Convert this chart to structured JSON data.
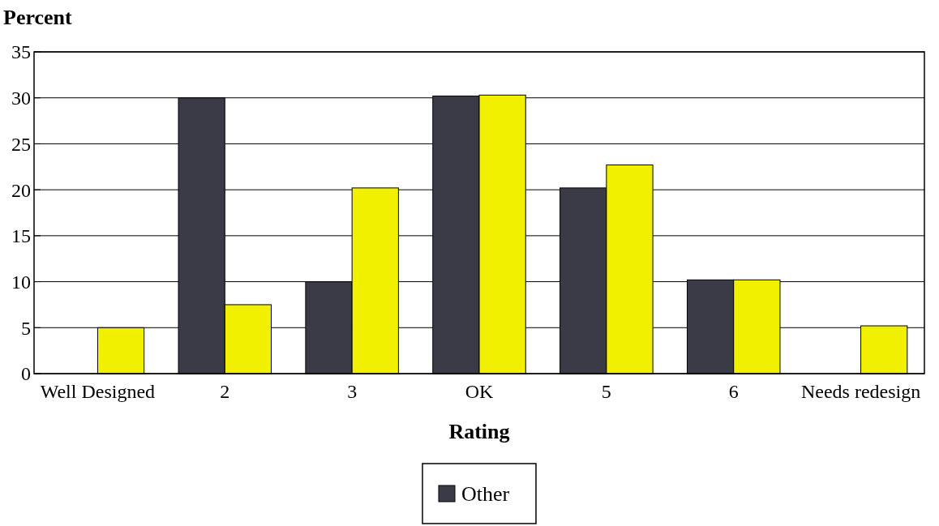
{
  "chart_data": {
    "type": "bar",
    "ylabel": "Percent",
    "xlabel": "Rating",
    "categories": [
      "Well Designed",
      "2",
      "3",
      "OK",
      "5",
      "6",
      "Needs redesign"
    ],
    "series": [
      {
        "name": "Other",
        "color": "#3b3b48",
        "values": [
          0,
          30,
          10,
          30.2,
          20.2,
          10.2,
          0
        ]
      },
      {
        "color": "#f0f000",
        "values": [
          5,
          7.5,
          20.2,
          30.3,
          22.7,
          10.2,
          5.2
        ]
      }
    ],
    "ylim": [
      0,
      35
    ],
    "yticks": [
      0,
      5,
      10,
      15,
      20,
      25,
      30,
      35
    ],
    "grid": "y",
    "legend": "bottom"
  }
}
